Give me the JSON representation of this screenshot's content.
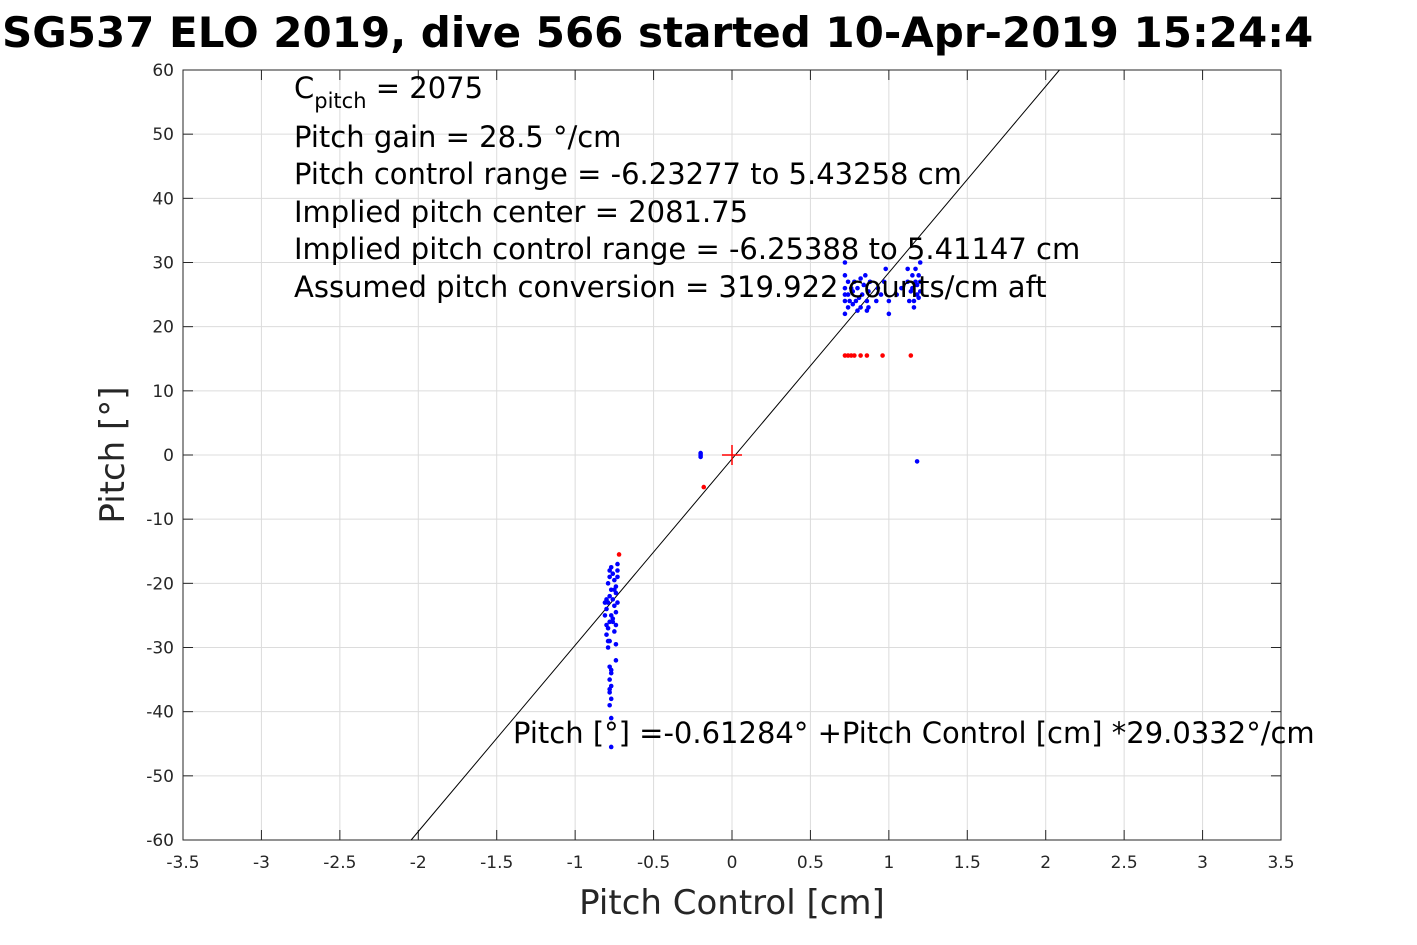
{
  "chart_data": {
    "type": "scatter",
    "title": "SG537 ELO 2019, dive 566 started 10-Apr-2019 15:24:4",
    "xlabel": "Pitch Control [cm]",
    "ylabel": "Pitch [°]",
    "xlim": [
      -3.5,
      3.5
    ],
    "ylim": [
      -60,
      60
    ],
    "x_ticks": [
      "-3.5",
      "-3",
      "-2.5",
      "-2",
      "-1.5",
      "-1",
      "-0.5",
      "0",
      "0.5",
      "1",
      "1.5",
      "2",
      "2.5",
      "3",
      "3.5"
    ],
    "y_ticks": [
      "60",
      "50",
      "40",
      "30",
      "20",
      "10",
      "0",
      "-10",
      "-20",
      "-30",
      "-40",
      "-50",
      "-60"
    ],
    "grid": true,
    "annotations": {
      "c_pitch_symbol": "C",
      "c_pitch_sub": "pitch",
      "c_pitch_rest": " = 2075",
      "pitch_gain": "Pitch gain = 28.5 °/cm",
      "control_range": "Pitch control range = -6.23277 to 5.43258 cm",
      "implied_center": "Implied pitch center = 2081.75",
      "implied_range": "Implied pitch control range = -6.25388 to 5.41147 cm",
      "conversion": "Assumed pitch conversion = 319.922 counts/cm aft",
      "fit_equation": "Pitch [°] =-0.61284° +Pitch Control [cm] *29.0332°/cm"
    },
    "fit_line": {
      "intercept": -0.61284,
      "slope": 29.0332,
      "color": "#000000"
    },
    "center_marker": {
      "x": 0,
      "y": 0,
      "color": "#ff0000"
    },
    "series": [
      {
        "color": "#0000ff",
        "points": [
          [
            -0.78,
            -18
          ],
          [
            -0.78,
            -19
          ],
          [
            -0.79,
            -20
          ],
          [
            -0.77,
            -21
          ],
          [
            -0.78,
            -22
          ],
          [
            -0.79,
            -23
          ],
          [
            -0.8,
            -24
          ],
          [
            -0.77,
            -25
          ],
          [
            -0.78,
            -26
          ],
          [
            -0.79,
            -27
          ],
          [
            -0.8,
            -28
          ],
          [
            -0.78,
            -29
          ],
          [
            -0.77,
            -17.5
          ],
          [
            -0.76,
            -18.5
          ],
          [
            -0.75,
            -19.5
          ],
          [
            -0.74,
            -20.5
          ],
          [
            -0.76,
            -22.5
          ],
          [
            -0.75,
            -23.5
          ],
          [
            -0.74,
            -24.5
          ],
          [
            -0.76,
            -26
          ],
          [
            -0.75,
            -27.5
          ],
          [
            -0.74,
            -29.5
          ],
          [
            -0.73,
            -17
          ],
          [
            -0.73,
            -18
          ],
          [
            -0.73,
            -19
          ],
          [
            -0.74,
            -21.5
          ],
          [
            -0.73,
            -23
          ],
          [
            -0.74,
            -26.5
          ],
          [
            -0.8,
            -22.5
          ],
          [
            -0.81,
            -25
          ],
          [
            -0.81,
            -23
          ],
          [
            -0.8,
            -26.5
          ],
          [
            -0.79,
            -30
          ],
          [
            -0.78,
            -33
          ],
          [
            -0.77,
            -34
          ],
          [
            -0.78,
            -35
          ],
          [
            -0.77,
            -36
          ],
          [
            -0.78,
            -37
          ],
          [
            -0.77,
            -38
          ],
          [
            -0.78,
            -39
          ],
          [
            -0.77,
            -33.5
          ],
          [
            -0.78,
            -36.5
          ],
          [
            -0.79,
            -29
          ],
          [
            -0.76,
            -25.5
          ],
          [
            -0.75,
            -21
          ],
          [
            -0.77,
            -41
          ],
          [
            -0.77,
            -45.5
          ],
          [
            -0.74,
            -32
          ],
          [
            -0.2,
            -0.3
          ],
          [
            -0.2,
            0.3
          ],
          [
            -0.2,
            0
          ],
          [
            0.72,
            22
          ],
          [
            0.72,
            24
          ],
          [
            0.72,
            25
          ],
          [
            0.72,
            26
          ],
          [
            0.72,
            28
          ],
          [
            0.72,
            30
          ],
          [
            0.74,
            23
          ],
          [
            0.74,
            25
          ],
          [
            0.74,
            27
          ],
          [
            0.75,
            24
          ],
          [
            0.76,
            26
          ],
          [
            0.77,
            23.5
          ],
          [
            0.77,
            25.5
          ],
          [
            0.78,
            27
          ],
          [
            0.79,
            24
          ],
          [
            0.8,
            22.5
          ],
          [
            0.8,
            26
          ],
          [
            0.81,
            24.5
          ],
          [
            0.82,
            27.5
          ],
          [
            0.82,
            23
          ],
          [
            0.83,
            25
          ],
          [
            0.84,
            26.5
          ],
          [
            0.85,
            28
          ],
          [
            0.86,
            22.5
          ],
          [
            0.86,
            24
          ],
          [
            0.87,
            25.5
          ],
          [
            0.87,
            23
          ],
          [
            0.88,
            27
          ],
          [
            0.92,
            24
          ],
          [
            0.93,
            26
          ],
          [
            0.95,
            25
          ],
          [
            0.97,
            27
          ],
          [
            0.98,
            29
          ],
          [
            1.0,
            24
          ],
          [
            1.0,
            22
          ],
          [
            1.05,
            25
          ],
          [
            1.08,
            26
          ],
          [
            1.12,
            27
          ],
          [
            1.12,
            29
          ],
          [
            1.13,
            24
          ],
          [
            1.14,
            25.5
          ],
          [
            1.15,
            28
          ],
          [
            1.15,
            26
          ],
          [
            1.16,
            24
          ],
          [
            1.16,
            23
          ],
          [
            1.17,
            27
          ],
          [
            1.17,
            29
          ],
          [
            1.18,
            25
          ],
          [
            1.18,
            26.5
          ],
          [
            1.19,
            28
          ],
          [
            1.19,
            24.5
          ],
          [
            1.2,
            27
          ],
          [
            1.2,
            30
          ],
          [
            1.2,
            25.5
          ],
          [
            1.18,
            -1
          ]
        ]
      },
      {
        "color": "#ff0000",
        "points": [
          [
            -0.72,
            -15.5
          ],
          [
            -0.18,
            -5
          ],
          [
            0.72,
            15.5
          ],
          [
            0.74,
            15.5
          ],
          [
            0.76,
            15.5
          ],
          [
            0.78,
            15.5
          ],
          [
            0.82,
            15.5
          ],
          [
            0.86,
            15.5
          ],
          [
            0.96,
            15.5
          ],
          [
            1.14,
            15.5
          ]
        ]
      }
    ]
  }
}
